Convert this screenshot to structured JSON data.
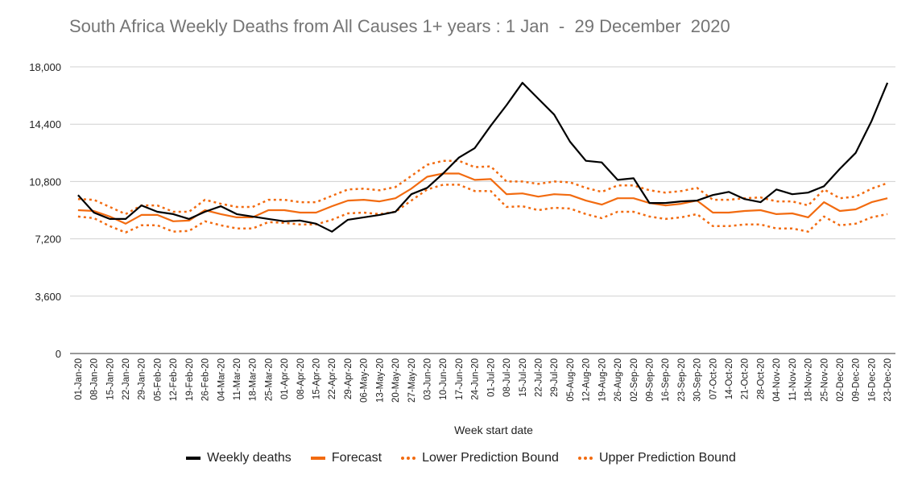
{
  "chart_data": {
    "type": "line",
    "title": "South Africa Weekly Deaths from All Causes 1+ years : 1 Jan  -  29 December  2020",
    "xlabel": "Week start date",
    "ylabel": "",
    "ylim": [
      0,
      18000
    ],
    "yticks": [
      "0",
      "3,600",
      "7,200",
      "10,800",
      "14,400",
      "18,000"
    ],
    "ytick_values": [
      0,
      3600,
      7200,
      10800,
      14400,
      18000
    ],
    "grid": true,
    "legend": "bottom",
    "categories": [
      "01-Jan-20",
      "08-Jan-20",
      "15-Jan-20",
      "22-Jan-20",
      "29-Jan-20",
      "05-Feb-20",
      "12-Feb-20",
      "19-Feb-20",
      "26-Feb-20",
      "04-Mar-20",
      "11-Mar-20",
      "18-Mar-20",
      "25-Mar-20",
      "01-Apr-20",
      "08-Apr-20",
      "15-Apr-20",
      "22-Apr-20",
      "29-Apr-20",
      "06-May-20",
      "13-May-20",
      "20-May-20",
      "27-May-20",
      "03-Jun-20",
      "10-Jun-20",
      "17-Jun-20",
      "24-Jun-20",
      "01-Jul-20",
      "08-Jul-20",
      "15-Jul-20",
      "22-Jul-20",
      "29-Jul-20",
      "05-Aug-20",
      "12-Aug-20",
      "19-Aug-20",
      "26-Aug-20",
      "02-Sep-20",
      "09-Sep-20",
      "16-Sep-20",
      "23-Sep-20",
      "30-Sep-20",
      "07-Oct-20",
      "14-Oct-20",
      "21-Oct-20",
      "28-Oct-20",
      "04-Nov-20",
      "11-Nov-20",
      "18-Nov-20",
      "25-Nov-20",
      "02-Dec-20",
      "09-Dec-20",
      "16-Dec-20",
      "23-Dec-20"
    ],
    "series": [
      {
        "name": "Weekly deaths",
        "color": "#000000",
        "style": "solid",
        "values": [
          9950,
          8850,
          8450,
          8450,
          9300,
          8900,
          8750,
          8450,
          8900,
          9250,
          8750,
          8600,
          8450,
          8300,
          8350,
          8150,
          7650,
          8400,
          8550,
          8700,
          8900,
          10000,
          10400,
          11300,
          12300,
          12900,
          14300,
          15600,
          17000,
          16000,
          15000,
          13300,
          12100,
          12000,
          10900,
          11000,
          9450,
          9450,
          9550,
          9600,
          9950,
          10150,
          9700,
          9500,
          10300,
          10000,
          10100,
          10500,
          11600,
          12600,
          14600,
          17000
        ]
      },
      {
        "name": "Forecast",
        "color": "#f26b10",
        "style": "solid",
        "values": [
          9000,
          8950,
          8600,
          8150,
          8700,
          8700,
          8300,
          8350,
          9000,
          8750,
          8550,
          8550,
          9000,
          9000,
          8850,
          8850,
          9250,
          9600,
          9650,
          9550,
          9750,
          10350,
          11100,
          11300,
          11300,
          10900,
          10950,
          10000,
          10050,
          9850,
          10000,
          9950,
          9600,
          9350,
          9750,
          9750,
          9450,
          9300,
          9400,
          9600,
          8850,
          8850,
          8950,
          9000,
          8750,
          8800,
          8550,
          9500,
          8950,
          9050,
          9500,
          9750
        ]
      },
      {
        "name": "Lower Prediction Bound",
        "color": "#f26b10",
        "style": "dotted",
        "values": [
          8600,
          8500,
          8000,
          7600,
          8050,
          8050,
          7650,
          7700,
          8300,
          8050,
          7850,
          7850,
          8250,
          8200,
          8100,
          8100,
          8400,
          8800,
          8850,
          8750,
          8900,
          9600,
          10300,
          10600,
          10600,
          10200,
          10200,
          9200,
          9250,
          9000,
          9150,
          9100,
          8750,
          8500,
          8900,
          8900,
          8600,
          8450,
          8550,
          8750,
          8000,
          8000,
          8100,
          8100,
          7850,
          7850,
          7650,
          8600,
          8050,
          8150,
          8550,
          8750
        ]
      },
      {
        "name": "Upper Prediction Bound",
        "color": "#f26b10",
        "style": "dotted",
        "values": [
          9700,
          9650,
          9200,
          8750,
          9300,
          9300,
          8900,
          8900,
          9650,
          9400,
          9200,
          9200,
          9650,
          9650,
          9500,
          9500,
          9900,
          10300,
          10350,
          10250,
          10450,
          11150,
          11850,
          12100,
          12100,
          11700,
          11750,
          10800,
          10800,
          10650,
          10800,
          10750,
          10400,
          10150,
          10550,
          10550,
          10250,
          10100,
          10200,
          10400,
          9650,
          9650,
          9750,
          9800,
          9550,
          9550,
          9300,
          10300,
          9750,
          9850,
          10350,
          10700
        ]
      }
    ]
  }
}
